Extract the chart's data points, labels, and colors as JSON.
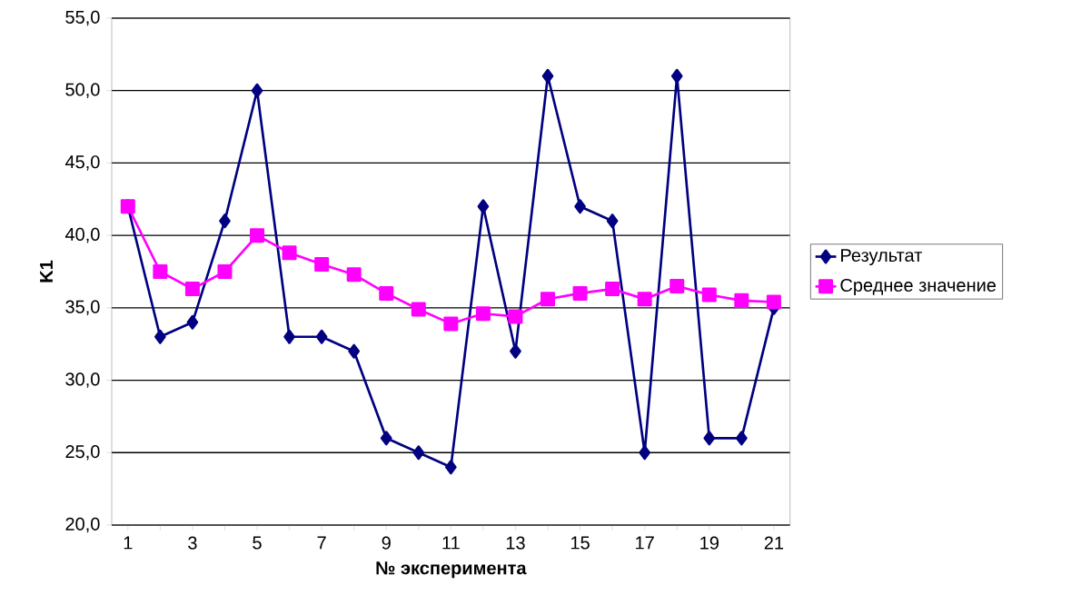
{
  "chart_data": {
    "type": "line",
    "xlabel": "№ эксперимента",
    "ylabel": "K1",
    "categories": [
      "1",
      null,
      "3",
      null,
      "5",
      null,
      "7",
      null,
      "9",
      null,
      "11",
      null,
      "13",
      null,
      "15",
      null,
      "17",
      null,
      "19",
      null,
      "21"
    ],
    "series": [
      {
        "name": "Результат",
        "color": "#000080",
        "marker": "diamond",
        "values": [
          42,
          33,
          34,
          41,
          50,
          33,
          33,
          32,
          26,
          25,
          24,
          42,
          32,
          51,
          42,
          41,
          25,
          51,
          26,
          26,
          35
        ]
      },
      {
        "name": "Среднее значение",
        "color": "#ff00ff",
        "marker": "square",
        "values": [
          42.0,
          37.5,
          36.3,
          37.5,
          40.0,
          38.8,
          38.0,
          37.3,
          36.0,
          34.9,
          33.9,
          34.6,
          34.4,
          35.6,
          36.0,
          36.3,
          35.6,
          36.5,
          35.9,
          35.5,
          35.4
        ]
      }
    ],
    "ylim": [
      20,
      55
    ],
    "yticks": [
      {
        "value": 20,
        "label": "20,0"
      },
      {
        "value": 25,
        "label": "25,0"
      },
      {
        "value": 30,
        "label": "30,0"
      },
      {
        "value": 35,
        "label": "35,0"
      },
      {
        "value": 40,
        "label": "40,0"
      },
      {
        "value": 45,
        "label": "45,0"
      },
      {
        "value": 50,
        "label": "50,0"
      },
      {
        "value": 55,
        "label": "55,0"
      }
    ],
    "grid": "y",
    "legend": "right",
    "line_style": "solid"
  }
}
